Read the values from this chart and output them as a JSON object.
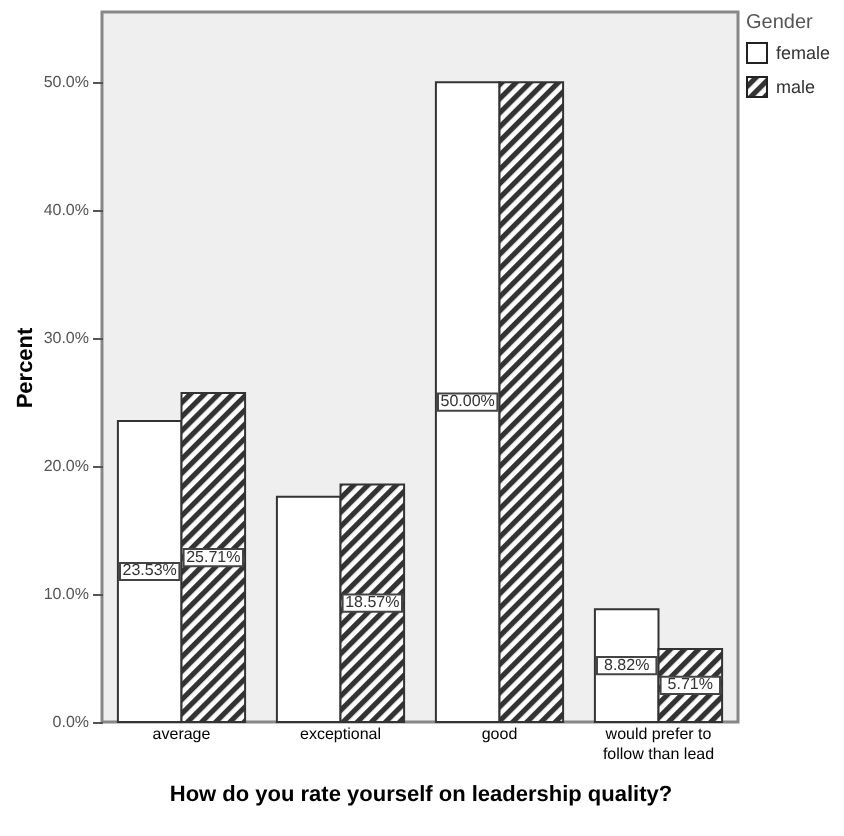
{
  "chart_data": {
    "type": "bar",
    "xlabel": "How do you rate yourself on leadership quality?",
    "ylabel": "Percent",
    "legend_title": "Gender",
    "categories": [
      "average",
      "exceptional",
      "good",
      "would prefer to follow than lead"
    ],
    "series": [
      {
        "name": "female",
        "color": "#ffffff",
        "values": [
          23.53,
          17.6,
          50.0,
          8.82
        ],
        "value_labels": [
          "23.53%",
          null,
          "50.00%",
          "8.82%"
        ]
      },
      {
        "name": "male",
        "color": "#333333",
        "values": [
          25.71,
          18.57,
          50.0,
          5.71
        ],
        "value_labels": [
          "25.71%",
          "18.57%",
          null,
          "5.71%"
        ]
      }
    ],
    "ylim": [
      0,
      55.5
    ],
    "yticks": [
      {
        "value": 0,
        "label": "0.0%"
      },
      {
        "value": 10,
        "label": "10.0%"
      },
      {
        "value": 20,
        "label": "20.0%"
      },
      {
        "value": 30,
        "label": "30.0%"
      },
      {
        "value": 40,
        "label": "40.0%"
      },
      {
        "value": 50,
        "label": "50.0%"
      }
    ],
    "grid": false,
    "legend": "top right"
  }
}
